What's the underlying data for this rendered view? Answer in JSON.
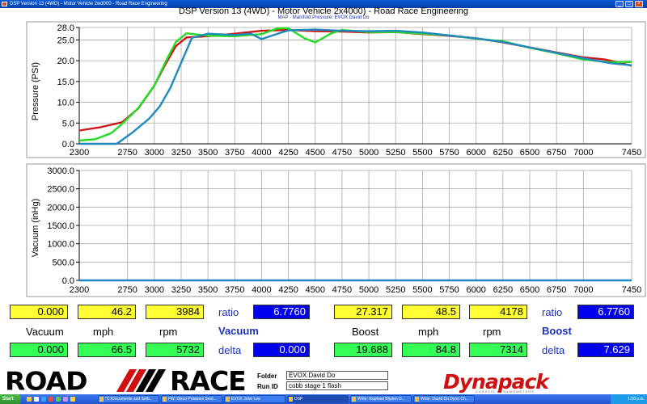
{
  "window": {
    "title": "DSP Version 13 (4WD) - Motor Vehicle 2wd000 - Road Race Engineering",
    "minimize_glyph": "_",
    "maximize_glyph": "□",
    "close_glyph": "×"
  },
  "heading": "DSP Version 13 (4WD) - Motor Vehicle 2x4000) - Road Race Engineering",
  "subheading": "MAP - Manifold Pressure: EVOX David Do",
  "chart_data": [
    {
      "type": "line",
      "ylabel": "Pressure (PSI)",
      "xlabel": "",
      "xlim": [
        2300,
        7450
      ],
      "ylim": [
        0,
        28
      ],
      "x_ticks": [
        2300,
        2750,
        3000,
        3250,
        3500,
        3750,
        4000,
        4250,
        4500,
        4750,
        5000,
        5250,
        5500,
        5750,
        6000,
        6250,
        6500,
        6750,
        7000,
        7450
      ],
      "x_tick_labels": [
        "2300",
        "2750",
        "3000",
        "3250",
        "3500",
        "3750",
        "4000",
        "4250",
        "4500",
        "4750",
        "5000",
        "5250",
        "5500",
        "5750",
        "6000",
        "6250",
        "6500",
        "6750",
        "7000",
        "7450"
      ],
      "y_ticks": [
        0,
        5,
        10,
        15,
        20,
        25,
        28
      ],
      "y_tick_labels": [
        "0.0",
        "5.0",
        "10.0",
        "15.0",
        "20.0",
        "25.0",
        "28.0"
      ],
      "grid": true,
      "series": [
        {
          "color": "#d01515",
          "x": [
            2300,
            2500,
            2700,
            2850,
            3000,
            3100,
            3200,
            3300,
            3500,
            3750,
            4000,
            4250,
            4500,
            4750,
            5000,
            5250,
            5500,
            5750,
            6000,
            6250,
            6500,
            6750,
            7000,
            7200,
            7450
          ],
          "y": [
            3.2,
            4.0,
            5.2,
            8.5,
            14.0,
            19.0,
            23.5,
            25.6,
            25.9,
            26.5,
            27.2,
            27.4,
            27.1,
            27.0,
            26.8,
            26.9,
            26.4,
            26.0,
            25.4,
            24.4,
            23.2,
            22.0,
            20.8,
            20.3,
            18.8
          ]
        },
        {
          "color": "#22dd22",
          "x": [
            2300,
            2450,
            2600,
            2700,
            2850,
            3000,
            3100,
            3200,
            3300,
            3500,
            3750,
            4000,
            4150,
            4250,
            4400,
            4500,
            4650,
            4750,
            5000,
            5250,
            5500,
            5750,
            6000,
            6250,
            6500,
            6750,
            7000,
            7250,
            7450
          ],
          "y": [
            0.8,
            1.1,
            2.6,
            4.8,
            8.6,
            14.0,
            19.5,
            24.5,
            26.6,
            26.0,
            25.9,
            26.4,
            27.8,
            27.8,
            25.4,
            24.4,
            26.6,
            27.4,
            26.9,
            26.9,
            26.5,
            26.1,
            25.3,
            24.7,
            23.1,
            21.8,
            20.3,
            19.6,
            19.7
          ]
        },
        {
          "color": "#1f8ac0",
          "x": [
            2300,
            2550,
            2650,
            2800,
            2950,
            3050,
            3150,
            3250,
            3350,
            3500,
            3750,
            3900,
            4000,
            4150,
            4250,
            4500,
            4750,
            5000,
            5250,
            5500,
            5750,
            6000,
            6250,
            6500,
            6750,
            7000,
            7250,
            7450
          ],
          "y": [
            0,
            0,
            0,
            2.8,
            6.0,
            9.0,
            13.5,
            19.5,
            25.5,
            26.5,
            26.2,
            26.5,
            25.2,
            26.5,
            27.3,
            27.5,
            27.2,
            27.1,
            27.2,
            26.8,
            26.1,
            25.4,
            24.5,
            23.2,
            21.9,
            20.6,
            19.4,
            18.9
          ]
        }
      ]
    },
    {
      "type": "line",
      "ylabel": "Vacuum (inHg)",
      "xlabel": "",
      "xlim": [
        2300,
        7450
      ],
      "ylim": [
        0,
        3000
      ],
      "x_ticks": [
        2300,
        2750,
        3000,
        3250,
        3500,
        3750,
        4000,
        4250,
        4500,
        4750,
        5000,
        5250,
        5500,
        5750,
        6000,
        6250,
        6500,
        6750,
        7000,
        7450
      ],
      "x_tick_labels": [
        "2300",
        "2750",
        "3000",
        "3250",
        "3500",
        "3750",
        "4000",
        "4250",
        "4500",
        "4750",
        "5000",
        "5250",
        "5500",
        "5750",
        "6000",
        "6250",
        "6500",
        "6750",
        "7000",
        "7450"
      ],
      "y_ticks": [
        0,
        500,
        1000,
        1500,
        2000,
        2500,
        3000
      ],
      "y_tick_labels": [
        "0.0",
        "500.0",
        "1000.0",
        "1500.0",
        "2000.0",
        "2500.0",
        "3000.0"
      ],
      "grid": true,
      "series": [
        {
          "color": "#1f8ac0",
          "x": [
            2300,
            7450
          ],
          "y": [
            0,
            0
          ]
        }
      ]
    }
  ],
  "vacuum": {
    "row1": [
      "0.000",
      "46.2",
      "3984"
    ],
    "ratio_label": "ratio",
    "ratio_value": "6.7760",
    "headers": [
      "Vacuum",
      "mph",
      "rpm"
    ],
    "title": "Vacuum",
    "row2": [
      "0.000",
      "66.5",
      "5732"
    ],
    "delta_label": "delta",
    "delta_value": "0.000"
  },
  "boost": {
    "row1": [
      "27.317",
      "48.5",
      "4178"
    ],
    "ratio_label": "ratio",
    "ratio_value": "6.7760",
    "headers": [
      "Boost",
      "mph",
      "rpm"
    ],
    "title": "Boost",
    "row2": [
      "19.688",
      "84.8",
      "7314"
    ],
    "delta_label": "delta",
    "delta_value": "7.629"
  },
  "footer": {
    "logo_road": "ROAD",
    "logo_race": "RACE",
    "folder_label": "Folder",
    "folder_value": "EVOX David Do",
    "runid_label": "Run ID",
    "runid_value": "cobb stage 1 flash",
    "brand": "Dynapack",
    "brand_sub": "CHASSIS DYNAMOMETERS"
  },
  "taskbar": {
    "start_label": "Start",
    "items": [
      "\"C:\\Documents and Setti...",
      "FW: Disco Potatoes Sent...",
      "EVOX John Lee",
      "DSP",
      "Write: Raphael Blyden D...",
      "Write: David Do Dyno Ch..."
    ],
    "clock": "1:58 p.m."
  }
}
